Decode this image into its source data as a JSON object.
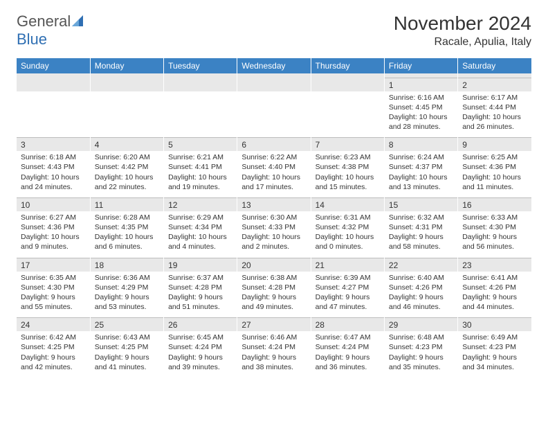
{
  "logo": {
    "word1": "General",
    "word2": "Blue"
  },
  "title": "November 2024",
  "location": "Racale, Apulia, Italy",
  "colors": {
    "header_bg": "#3b82c4",
    "header_text": "#ffffff",
    "daynum_bg": "#e8e8e8",
    "text": "#333333",
    "logo_gray": "#555555",
    "logo_blue": "#2f6fb3"
  },
  "daysOfWeek": [
    "Sunday",
    "Monday",
    "Tuesday",
    "Wednesday",
    "Thursday",
    "Friday",
    "Saturday"
  ],
  "weeks": [
    [
      {
        "num": "",
        "lines": [
          "",
          "",
          "",
          ""
        ]
      },
      {
        "num": "",
        "lines": [
          "",
          "",
          "",
          ""
        ]
      },
      {
        "num": "",
        "lines": [
          "",
          "",
          "",
          ""
        ]
      },
      {
        "num": "",
        "lines": [
          "",
          "",
          "",
          ""
        ]
      },
      {
        "num": "",
        "lines": [
          "",
          "",
          "",
          ""
        ]
      },
      {
        "num": "1",
        "lines": [
          "Sunrise: 6:16 AM",
          "Sunset: 4:45 PM",
          "Daylight: 10 hours",
          "and 28 minutes."
        ]
      },
      {
        "num": "2",
        "lines": [
          "Sunrise: 6:17 AM",
          "Sunset: 4:44 PM",
          "Daylight: 10 hours",
          "and 26 minutes."
        ]
      }
    ],
    [
      {
        "num": "3",
        "lines": [
          "Sunrise: 6:18 AM",
          "Sunset: 4:43 PM",
          "Daylight: 10 hours",
          "and 24 minutes."
        ]
      },
      {
        "num": "4",
        "lines": [
          "Sunrise: 6:20 AM",
          "Sunset: 4:42 PM",
          "Daylight: 10 hours",
          "and 22 minutes."
        ]
      },
      {
        "num": "5",
        "lines": [
          "Sunrise: 6:21 AM",
          "Sunset: 4:41 PM",
          "Daylight: 10 hours",
          "and 19 minutes."
        ]
      },
      {
        "num": "6",
        "lines": [
          "Sunrise: 6:22 AM",
          "Sunset: 4:40 PM",
          "Daylight: 10 hours",
          "and 17 minutes."
        ]
      },
      {
        "num": "7",
        "lines": [
          "Sunrise: 6:23 AM",
          "Sunset: 4:38 PM",
          "Daylight: 10 hours",
          "and 15 minutes."
        ]
      },
      {
        "num": "8",
        "lines": [
          "Sunrise: 6:24 AM",
          "Sunset: 4:37 PM",
          "Daylight: 10 hours",
          "and 13 minutes."
        ]
      },
      {
        "num": "9",
        "lines": [
          "Sunrise: 6:25 AM",
          "Sunset: 4:36 PM",
          "Daylight: 10 hours",
          "and 11 minutes."
        ]
      }
    ],
    [
      {
        "num": "10",
        "lines": [
          "Sunrise: 6:27 AM",
          "Sunset: 4:36 PM",
          "Daylight: 10 hours",
          "and 9 minutes."
        ]
      },
      {
        "num": "11",
        "lines": [
          "Sunrise: 6:28 AM",
          "Sunset: 4:35 PM",
          "Daylight: 10 hours",
          "and 6 minutes."
        ]
      },
      {
        "num": "12",
        "lines": [
          "Sunrise: 6:29 AM",
          "Sunset: 4:34 PM",
          "Daylight: 10 hours",
          "and 4 minutes."
        ]
      },
      {
        "num": "13",
        "lines": [
          "Sunrise: 6:30 AM",
          "Sunset: 4:33 PM",
          "Daylight: 10 hours",
          "and 2 minutes."
        ]
      },
      {
        "num": "14",
        "lines": [
          "Sunrise: 6:31 AM",
          "Sunset: 4:32 PM",
          "Daylight: 10 hours",
          "and 0 minutes."
        ]
      },
      {
        "num": "15",
        "lines": [
          "Sunrise: 6:32 AM",
          "Sunset: 4:31 PM",
          "Daylight: 9 hours",
          "and 58 minutes."
        ]
      },
      {
        "num": "16",
        "lines": [
          "Sunrise: 6:33 AM",
          "Sunset: 4:30 PM",
          "Daylight: 9 hours",
          "and 56 minutes."
        ]
      }
    ],
    [
      {
        "num": "17",
        "lines": [
          "Sunrise: 6:35 AM",
          "Sunset: 4:30 PM",
          "Daylight: 9 hours",
          "and 55 minutes."
        ]
      },
      {
        "num": "18",
        "lines": [
          "Sunrise: 6:36 AM",
          "Sunset: 4:29 PM",
          "Daylight: 9 hours",
          "and 53 minutes."
        ]
      },
      {
        "num": "19",
        "lines": [
          "Sunrise: 6:37 AM",
          "Sunset: 4:28 PM",
          "Daylight: 9 hours",
          "and 51 minutes."
        ]
      },
      {
        "num": "20",
        "lines": [
          "Sunrise: 6:38 AM",
          "Sunset: 4:28 PM",
          "Daylight: 9 hours",
          "and 49 minutes."
        ]
      },
      {
        "num": "21",
        "lines": [
          "Sunrise: 6:39 AM",
          "Sunset: 4:27 PM",
          "Daylight: 9 hours",
          "and 47 minutes."
        ]
      },
      {
        "num": "22",
        "lines": [
          "Sunrise: 6:40 AM",
          "Sunset: 4:26 PM",
          "Daylight: 9 hours",
          "and 46 minutes."
        ]
      },
      {
        "num": "23",
        "lines": [
          "Sunrise: 6:41 AM",
          "Sunset: 4:26 PM",
          "Daylight: 9 hours",
          "and 44 minutes."
        ]
      }
    ],
    [
      {
        "num": "24",
        "lines": [
          "Sunrise: 6:42 AM",
          "Sunset: 4:25 PM",
          "Daylight: 9 hours",
          "and 42 minutes."
        ]
      },
      {
        "num": "25",
        "lines": [
          "Sunrise: 6:43 AM",
          "Sunset: 4:25 PM",
          "Daylight: 9 hours",
          "and 41 minutes."
        ]
      },
      {
        "num": "26",
        "lines": [
          "Sunrise: 6:45 AM",
          "Sunset: 4:24 PM",
          "Daylight: 9 hours",
          "and 39 minutes."
        ]
      },
      {
        "num": "27",
        "lines": [
          "Sunrise: 6:46 AM",
          "Sunset: 4:24 PM",
          "Daylight: 9 hours",
          "and 38 minutes."
        ]
      },
      {
        "num": "28",
        "lines": [
          "Sunrise: 6:47 AM",
          "Sunset: 4:24 PM",
          "Daylight: 9 hours",
          "and 36 minutes."
        ]
      },
      {
        "num": "29",
        "lines": [
          "Sunrise: 6:48 AM",
          "Sunset: 4:23 PM",
          "Daylight: 9 hours",
          "and 35 minutes."
        ]
      },
      {
        "num": "30",
        "lines": [
          "Sunrise: 6:49 AM",
          "Sunset: 4:23 PM",
          "Daylight: 9 hours",
          "and 34 minutes."
        ]
      }
    ]
  ]
}
